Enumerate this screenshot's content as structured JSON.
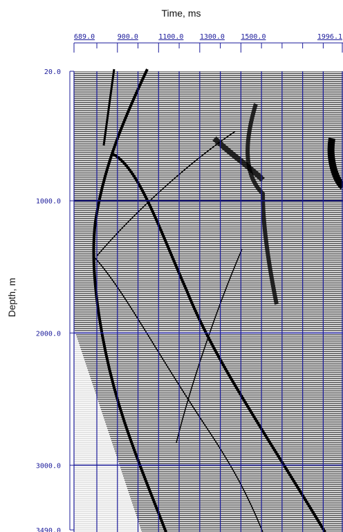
{
  "chart_data": {
    "type": "seismic",
    "x_label": "Time, ms",
    "y_label": "Depth, m",
    "xlim": [
      689,
      1996.1
    ],
    "xticks": [
      {
        "value": 689,
        "label": "689.0"
      },
      {
        "value": 900,
        "label": "900.0"
      },
      {
        "value": 1100,
        "label": "1100.0"
      },
      {
        "value": 1300,
        "label": "1300.0"
      },
      {
        "value": 1500,
        "label": "1500.0"
      },
      {
        "value": 1996.1,
        "label": "1996.1"
      }
    ],
    "xticks_minor": [
      800,
      1000,
      1200,
      1400,
      1600,
      1700,
      1800,
      1900
    ],
    "ylim": [
      20,
      3490
    ],
    "yticks": [
      {
        "value": 20,
        "label": "20.0"
      },
      {
        "value": 1000,
        "label": "1000.0"
      },
      {
        "value": 2000,
        "label": "2000.0"
      },
      {
        "value": 3000,
        "label": "3000.0"
      },
      {
        "value": 3490,
        "label": "3490.0"
      }
    ],
    "grid": true,
    "grid_color": "#1a1a9a",
    "trace_color": "#000000"
  }
}
